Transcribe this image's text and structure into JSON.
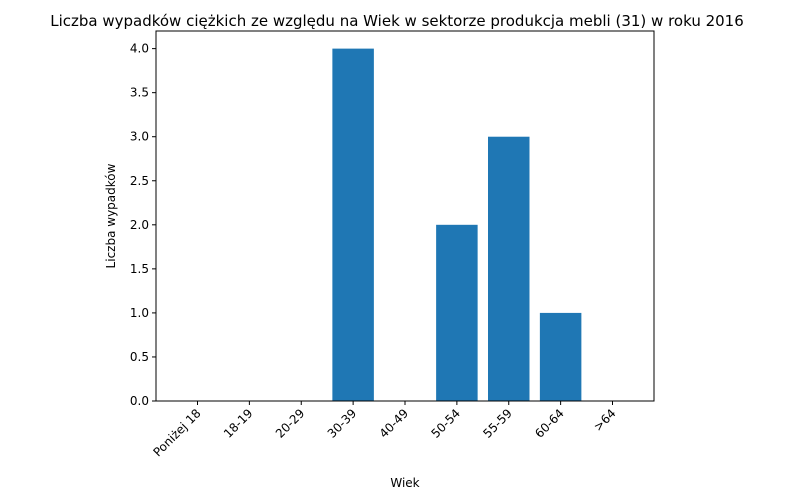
{
  "chart_data": {
    "type": "bar",
    "title": "Liczba wypadków ciężkich ze względu na Wiek w sektorze produkcja mebli  (31)   w roku 2016",
    "xlabel": "Wiek",
    "ylabel": "Liczba wypadków",
    "categories": [
      "Poniżej 18",
      "18-19",
      "20-29",
      "30-39",
      "40-49",
      "50-54",
      "55-59",
      "60-64",
      ">64"
    ],
    "values": [
      0,
      0,
      0,
      4,
      0,
      2,
      3,
      1,
      0
    ],
    "ylim": [
      0,
      4.2
    ],
    "yticks": [
      "0.0",
      "0.5",
      "1.0",
      "1.5",
      "2.0",
      "2.5",
      "3.0",
      "3.5",
      "4.0"
    ],
    "bar_color": "#1f77b4",
    "grid": false,
    "legend": "none"
  }
}
